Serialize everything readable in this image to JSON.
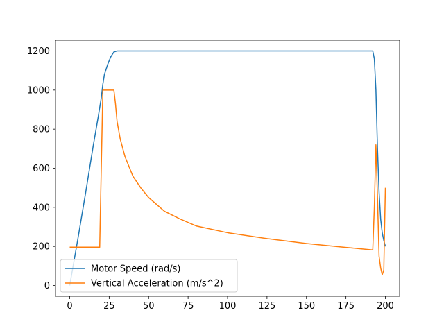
{
  "chart_data": {
    "type": "line",
    "title": "",
    "xlabel": "",
    "ylabel": "",
    "xlim": [
      -9,
      209
    ],
    "ylim": [
      -55,
      1255
    ],
    "xticks": [
      0,
      25,
      50,
      75,
      100,
      125,
      150,
      175,
      200
    ],
    "yticks": [
      0,
      200,
      400,
      600,
      800,
      1000,
      1200
    ],
    "grid": false,
    "legend_position": "lower-left",
    "series": [
      {
        "name": "Motor Speed (rad/s)",
        "color": "#1f77b4",
        "points": [
          [
            0,
            0
          ],
          [
            5,
            230
          ],
          [
            10,
            470
          ],
          [
            15,
            720
          ],
          [
            18,
            860
          ],
          [
            20,
            960
          ],
          [
            21,
            1030
          ],
          [
            22,
            1080
          ],
          [
            24,
            1130
          ],
          [
            26,
            1170
          ],
          [
            28,
            1195
          ],
          [
            30,
            1200
          ],
          [
            192,
            1200
          ],
          [
            193,
            1160
          ],
          [
            194,
            1000
          ],
          [
            195,
            700
          ],
          [
            196,
            480
          ],
          [
            197,
            340
          ],
          [
            198,
            270
          ],
          [
            199,
            230
          ],
          [
            200,
            200
          ]
        ]
      },
      {
        "name": "Vertical Acceleration (m/s^2)",
        "color": "#ff7f0e",
        "points": [
          [
            0,
            196
          ],
          [
            19,
            196
          ],
          [
            20,
            600
          ],
          [
            21,
            1000
          ],
          [
            28,
            1000
          ],
          [
            29,
            930
          ],
          [
            30,
            840
          ],
          [
            32,
            750
          ],
          [
            35,
            660
          ],
          [
            40,
            560
          ],
          [
            45,
            500
          ],
          [
            50,
            450
          ],
          [
            60,
            380
          ],
          [
            70,
            340
          ],
          [
            80,
            305
          ],
          [
            100,
            270
          ],
          [
            125,
            240
          ],
          [
            150,
            215
          ],
          [
            175,
            195
          ],
          [
            192,
            182
          ],
          [
            193,
            400
          ],
          [
            194,
            720
          ],
          [
            195,
            450
          ],
          [
            196,
            150
          ],
          [
            197,
            90
          ],
          [
            198,
            55
          ],
          [
            199,
            80
          ],
          [
            199.5,
            300
          ],
          [
            200,
            500
          ]
        ]
      }
    ]
  }
}
